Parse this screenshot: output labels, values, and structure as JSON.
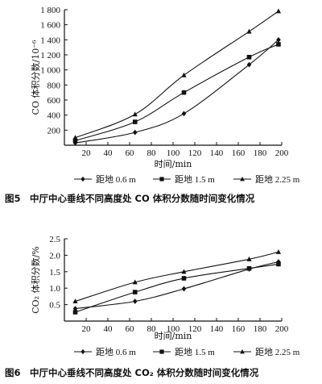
{
  "chart_data": [
    {
      "type": "line",
      "caption": "图5　中厅中心垂线不同高度处 CO 体积分数随时间变化情况",
      "xlabel": "时间/min",
      "ylabel": "CO 体积分数/10⁻⁶",
      "xlim": [
        0,
        200
      ],
      "ylim": [
        0,
        1800
      ],
      "xticks": [
        20,
        40,
        60,
        80,
        100,
        120,
        140,
        160,
        180,
        200
      ],
      "yticks": [
        200,
        400,
        600,
        800,
        1000,
        1200,
        1400,
        1600,
        1800
      ],
      "ytick_labels": [
        "200",
        "400",
        "600",
        "800",
        "1 000",
        "1 200",
        "1 400",
        "1 600",
        "1 800"
      ],
      "grid": false,
      "legend_position": "bottom",
      "series": [
        {
          "name": "距地 0.6 m",
          "marker": "diamond",
          "x": [
            10,
            65,
            110,
            170,
            197
          ],
          "y": [
            30,
            170,
            420,
            1070,
            1400
          ]
        },
        {
          "name": "距地 1.5 m",
          "marker": "square",
          "x": [
            10,
            65,
            110,
            170,
            197
          ],
          "y": [
            60,
            310,
            700,
            1170,
            1340
          ]
        },
        {
          "name": "距地 2.25 m",
          "marker": "triangle",
          "x": [
            10,
            65,
            110,
            170,
            197
          ],
          "y": [
            100,
            410,
            930,
            1510,
            1780
          ]
        }
      ]
    },
    {
      "type": "line",
      "caption": "图6　中厅中心垂线不同高度处 CO₂ 体积分数随时间变化情况",
      "xlabel": "时间/min",
      "ylabel": "CO₂ 体积分数/%",
      "xlim": [
        0,
        200
      ],
      "ylim": [
        0,
        2.5
      ],
      "xticks": [
        20,
        40,
        60,
        80,
        100,
        120,
        140,
        160,
        180,
        200
      ],
      "yticks": [
        0.5,
        1.0,
        1.5,
        2.0,
        2.5
      ],
      "ytick_labels": [
        "0.5",
        "1.0",
        "1.5",
        "2.0",
        "2.5"
      ],
      "grid": false,
      "legend_position": "bottom",
      "series": [
        {
          "name": "距地 0.6 m",
          "marker": "diamond",
          "x": [
            10,
            65,
            110,
            170,
            197
          ],
          "y": [
            0.38,
            0.6,
            0.98,
            1.58,
            1.8
          ]
        },
        {
          "name": "距地 1.5 m",
          "marker": "square",
          "x": [
            10,
            65,
            110,
            170,
            197
          ],
          "y": [
            0.27,
            0.88,
            1.3,
            1.6,
            1.73
          ]
        },
        {
          "name": "距地 2.25 m",
          "marker": "triangle",
          "x": [
            10,
            65,
            110,
            170,
            197
          ],
          "y": [
            0.6,
            1.18,
            1.5,
            1.88,
            2.1
          ]
        }
      ]
    }
  ]
}
